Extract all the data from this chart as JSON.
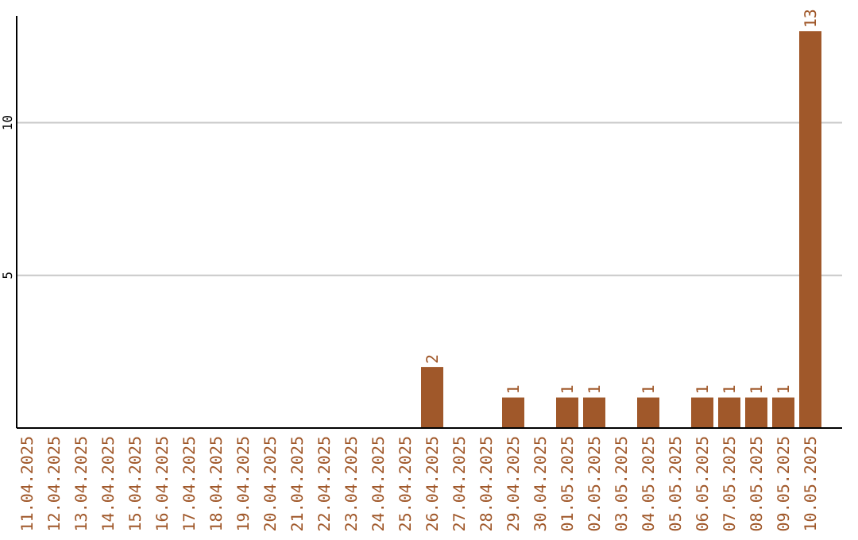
{
  "chart_data": {
    "type": "bar",
    "categories": [
      "11.04.2025",
      "12.04.2025",
      "13.04.2025",
      "14.04.2025",
      "15.04.2025",
      "16.04.2025",
      "17.04.2025",
      "18.04.2025",
      "19.04.2025",
      "20.04.2025",
      "21.04.2025",
      "22.04.2025",
      "23.04.2025",
      "24.04.2025",
      "25.04.2025",
      "26.04.2025",
      "27.04.2025",
      "28.04.2025",
      "29.04.2025",
      "30.04.2025",
      "01.05.2025",
      "02.05.2025",
      "03.05.2025",
      "04.05.2025",
      "05.05.2025",
      "06.05.2025",
      "07.05.2025",
      "08.05.2025",
      "09.05.2025",
      "10.05.2025"
    ],
    "values": [
      0,
      0,
      0,
      0,
      0,
      0,
      0,
      0,
      0,
      0,
      0,
      0,
      0,
      0,
      0,
      2,
      0,
      0,
      1,
      0,
      1,
      1,
      0,
      1,
      0,
      1,
      1,
      1,
      1,
      13
    ],
    "value_labels": [
      null,
      null,
      null,
      null,
      null,
      null,
      null,
      null,
      null,
      null,
      null,
      null,
      null,
      null,
      null,
      "2",
      null,
      null,
      "1",
      null,
      "1",
      "1",
      null,
      "1",
      null,
      "1",
      "1",
      "1",
      "1",
      "13"
    ],
    "color": "#a0582a",
    "ylim": [
      0,
      13.5
    ],
    "yticks": [
      5,
      10
    ],
    "grid": "y"
  }
}
